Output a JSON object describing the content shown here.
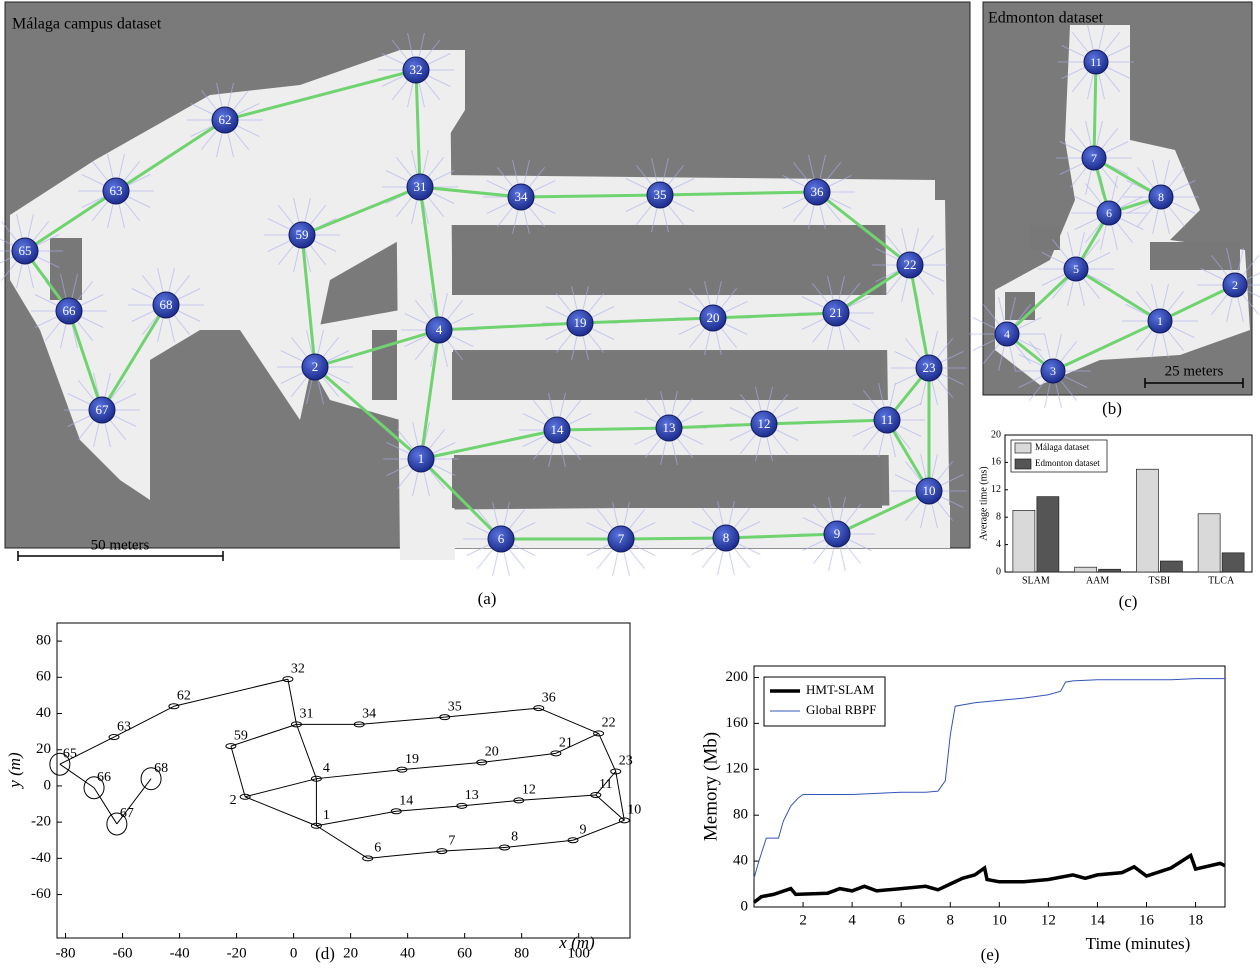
{
  "chart_data": [
    {
      "type": "map",
      "title": "Málaga campus dataset",
      "scale_label": "50 meters",
      "caption": "(a)",
      "nodes": [
        "32",
        "62",
        "63",
        "65",
        "66",
        "68",
        "67",
        "59",
        "31",
        "34",
        "35",
        "36",
        "22",
        "2",
        "4",
        "19",
        "20",
        "21",
        "23",
        "14",
        "13",
        "12",
        "11",
        "1",
        "10",
        "6",
        "7",
        "8",
        "9"
      ]
    },
    {
      "type": "map",
      "title": "Edmonton dataset",
      "scale_label": "25 meters",
      "caption": "(b)",
      "nodes": [
        "11",
        "7",
        "8",
        "6",
        "5",
        "2",
        "1",
        "4",
        "3"
      ]
    },
    {
      "type": "bar",
      "caption": "(c)",
      "y_label": "Average time (ms)",
      "categories": [
        "SLAM",
        "AAM",
        "TSBI",
        "TLCA"
      ],
      "series": [
        {
          "name": "Málaga dataset",
          "color": "#d9d9d9",
          "values": [
            9,
            0.7,
            15,
            8.5
          ]
        },
        {
          "name": "Edmonton dataset",
          "color": "#555555",
          "values": [
            11,
            0.4,
            1.6,
            2.8
          ]
        }
      ],
      "ylim": [
        0,
        20
      ],
      "yticks": [
        0,
        4,
        8,
        12,
        16,
        20
      ],
      "legend": "upper left"
    },
    {
      "type": "graph",
      "caption": "(d)",
      "x_label": "x (m)",
      "y_label": "y (m)",
      "nodes": [
        "32",
        "62",
        "63",
        "65",
        "66",
        "68",
        "67",
        "59",
        "31",
        "34",
        "35",
        "36",
        "22",
        "2",
        "4",
        "19",
        "20",
        "21",
        "23",
        "14",
        "13",
        "12",
        "11",
        "1",
        "10",
        "6",
        "7",
        "8",
        "9"
      ],
      "x": [
        -2,
        -42,
        -63,
        -82,
        -70,
        -50,
        -62,
        -22,
        1,
        23,
        53,
        86,
        107,
        -17,
        8,
        38,
        66,
        92,
        113,
        36,
        59,
        79,
        106,
        8,
        116,
        26,
        52,
        74,
        98
      ],
      "y": [
        59,
        44,
        27,
        12,
        -1,
        4,
        -21,
        22,
        34,
        34,
        38,
        43,
        29,
        -6,
        4,
        9,
        13,
        18,
        8,
        -14,
        -11,
        -8,
        -5,
        -22,
        -19,
        -40,
        -36,
        -34,
        -30
      ],
      "xlim": [
        -83,
        118
      ],
      "ylim": [
        -84,
        90
      ],
      "xticks": [
        -80,
        -60,
        -40,
        -20,
        0,
        20,
        40,
        60,
        80,
        100
      ],
      "yticks": [
        -60,
        -40,
        -20,
        0,
        20,
        40,
        60,
        80
      ]
    },
    {
      "type": "line",
      "caption": "(e)",
      "x_label": "Time (minutes)",
      "y_label": "Memory (Mb)",
      "series": [
        {
          "name": "HMT-SLAM",
          "color": "#000000",
          "x": [
            0,
            0.3,
            0.8,
            1.5,
            1.7,
            3,
            3.5,
            4,
            4.5,
            5,
            6,
            7,
            7.5,
            8,
            8.5,
            9,
            9.4,
            9.5,
            10,
            11,
            12,
            13,
            13.5,
            14,
            15,
            15.5,
            16,
            17,
            17.8,
            18,
            19,
            19.2
          ],
          "values": [
            4,
            9,
            11,
            16,
            11,
            12,
            16,
            14,
            18,
            14,
            16,
            18,
            15,
            20,
            25,
            28,
            34,
            24,
            22,
            22,
            24,
            28,
            25,
            28,
            30,
            35,
            27,
            34,
            45,
            33,
            38,
            36
          ]
        },
        {
          "name": "Global RBPF",
          "color": "#3355bb",
          "x": [
            0,
            0.2,
            0.5,
            1,
            1.2,
            1.5,
            1.8,
            2,
            4,
            6,
            7,
            7.5,
            7.8,
            8,
            8.2,
            9,
            10,
            11,
            12,
            12.5,
            12.7,
            13,
            14,
            15,
            16,
            17,
            18,
            19.2
          ],
          "values": [
            25,
            40,
            60,
            60,
            75,
            88,
            95,
            98,
            98,
            100,
            100,
            101,
            110,
            150,
            175,
            178,
            180,
            182,
            185,
            188,
            196,
            197,
            198,
            198,
            198,
            198,
            199,
            199
          ]
        }
      ],
      "xlim": [
        0,
        19.2
      ],
      "ylim": [
        0,
        210
      ],
      "xticks": [
        2,
        4,
        6,
        8,
        10,
        12,
        14,
        16,
        18
      ],
      "yticks": [
        0,
        40,
        80,
        120,
        160,
        200
      ],
      "legend": "upper left"
    }
  ]
}
